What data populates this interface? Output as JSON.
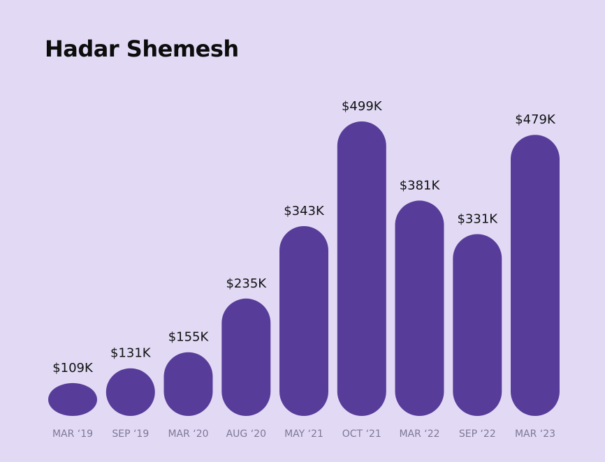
{
  "title": "Hadar Shemesh",
  "colors": {
    "background": "#e2daf5",
    "bar": "#573d99",
    "title": "#0d0d0d",
    "value_label": "#111111",
    "tick_label": "#7e7896"
  },
  "chart_data": {
    "type": "bar",
    "title": "Hadar Shemesh",
    "categories": [
      "MAR ‘19",
      "SEP ‘19",
      "MAR ‘20",
      "AUG ‘20",
      "MAY ‘21",
      "OCT ‘21",
      "MAR ‘22",
      "SEP ‘22",
      "MAR ‘23"
    ],
    "values": [
      109,
      131,
      155,
      235,
      343,
      499,
      381,
      331,
      479
    ],
    "value_labels": [
      "$109K",
      "$131K",
      "$155K",
      "$235K",
      "$343K",
      "$499K",
      "$381K",
      "$331K",
      "$479K"
    ],
    "unit": "thousands of USD",
    "ylim": [
      60,
      499
    ],
    "grid": false,
    "legend": "none",
    "bar_style": "rounded pill"
  }
}
